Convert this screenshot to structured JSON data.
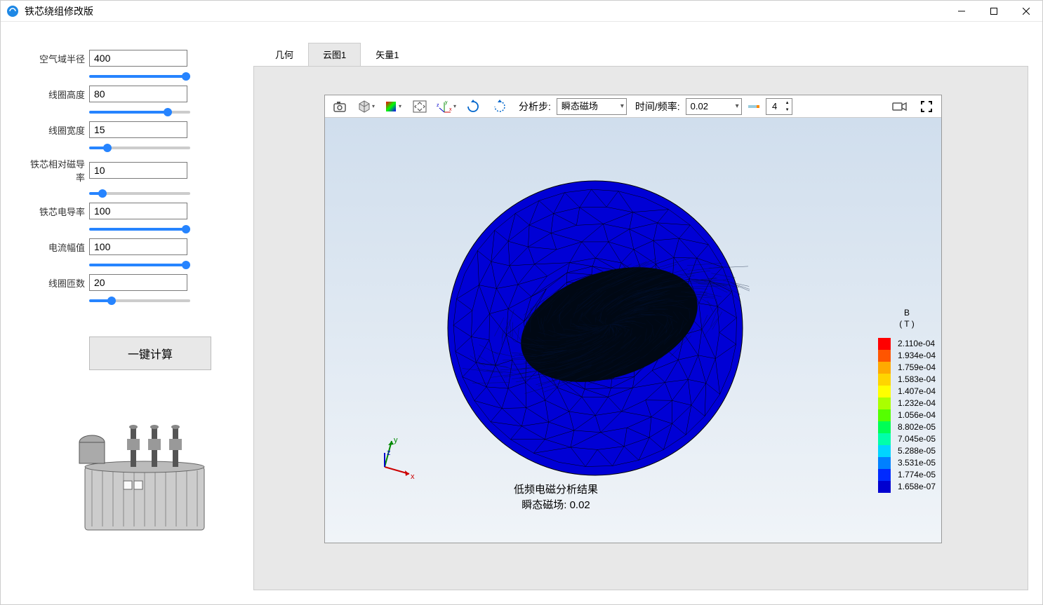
{
  "window": {
    "title": "铁芯绕组修改版"
  },
  "params": [
    {
      "label": "空气域半径",
      "value": "400",
      "slider": 100
    },
    {
      "label": "线圈高度",
      "value": "80",
      "slider": 80
    },
    {
      "label": "线圈宽度",
      "value": "15",
      "slider": 15
    },
    {
      "label": "铁芯相对磁导率",
      "value": "10",
      "slider": 10
    },
    {
      "label": "铁芯电导率",
      "value": "100",
      "slider": 100
    },
    {
      "label": "电流幅值",
      "value": "100",
      "slider": 100
    },
    {
      "label": "线圈匝数",
      "value": "20",
      "slider": 20
    }
  ],
  "compute_button": "一键计算",
  "tabs": [
    {
      "label": "几何",
      "active": false
    },
    {
      "label": "云图1",
      "active": true
    },
    {
      "label": "矢量1",
      "active": false
    }
  ],
  "toolbar": {
    "step_label": "分析步:",
    "step_value": "瞬态磁场",
    "time_label": "时间/频率:",
    "time_value": "0.02",
    "frame_value": "4"
  },
  "result": {
    "line1": "低频电磁分析结果",
    "line2": "瞬态磁场: 0.02"
  },
  "legend": {
    "title_line1": "B",
    "title_line2": "( T )",
    "colors": [
      "#ff0000",
      "#ff5500",
      "#ffaa00",
      "#ffd500",
      "#ffff00",
      "#aaff00",
      "#55ff00",
      "#00ff55",
      "#00ffaa",
      "#00d5ff",
      "#0080ff",
      "#002aff",
      "#0000d0"
    ],
    "values": [
      "2.110e-04",
      "1.934e-04",
      "1.759e-04",
      "1.583e-04",
      "1.407e-04",
      "1.232e-04",
      "1.056e-04",
      "8.802e-05",
      "7.045e-05",
      "5.288e-05",
      "3.531e-05",
      "1.774e-05",
      "1.658e-07"
    ]
  },
  "mesh": {
    "fill": "#0000d5",
    "stroke": "#000000"
  },
  "axes": {
    "x_color": "#cc0000",
    "y_color": "#008800",
    "z_color": "#0000cc"
  }
}
